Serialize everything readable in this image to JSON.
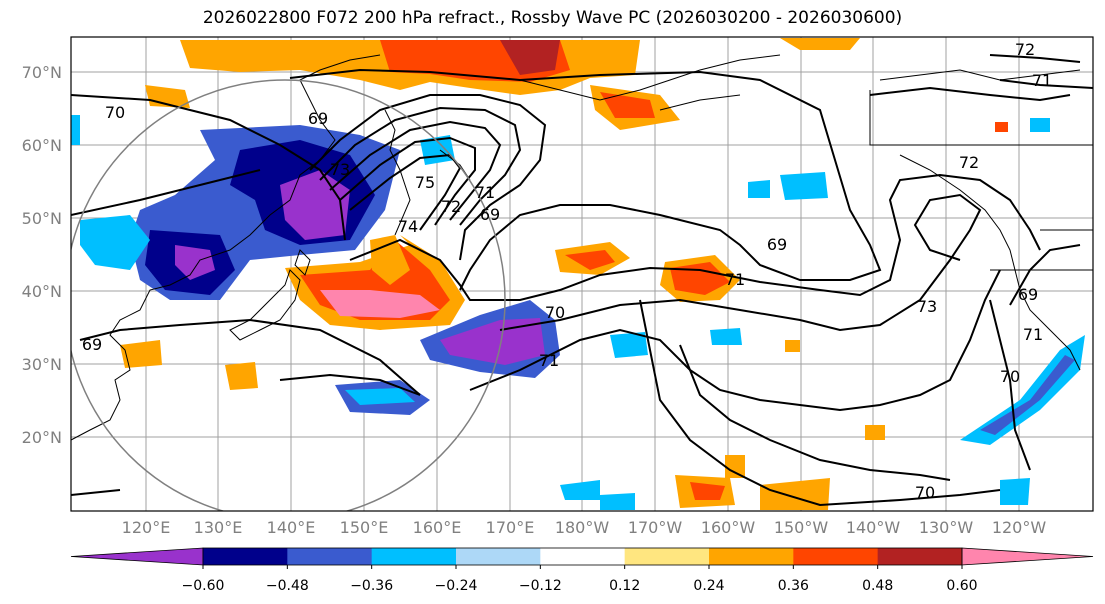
{
  "title": "2026022800 F072 200 hPa refract., Rossby Wave PC (2026030200 - 2026030600)",
  "lat_labels": [
    "70°N",
    "60°N",
    "50°N",
    "40°N",
    "30°N",
    "20°N"
  ],
  "lon_labels": [
    "120°E",
    "130°E",
    "140°E",
    "150°E",
    "160°E",
    "170°E",
    "180°W",
    "170°W",
    "160°W",
    "150°W",
    "140°W",
    "130°W",
    "120°W"
  ],
  "contour_labels": [
    "70",
    "69",
    "73",
    "75",
    "74",
    "72",
    "71",
    "69",
    "70",
    "71",
    "69",
    "69",
    "71",
    "72",
    "73",
    "71",
    "70",
    "69",
    "70",
    "72",
    "71"
  ],
  "colorbar": {
    "ticks": [
      "−0.60",
      "−0.48",
      "−0.36",
      "−0.24",
      "−0.12",
      "0.12",
      "0.24",
      "0.36",
      "0.48",
      "0.60"
    ],
    "colors": [
      "#9932CC",
      "#00008B",
      "#3A5BCF",
      "#00BFFF",
      "#ADD8F7",
      "#FFFFFF",
      "#FFE680",
      "#FFA500",
      "#FF4500",
      "#B22222",
      "#FF85AD"
    ]
  }
}
